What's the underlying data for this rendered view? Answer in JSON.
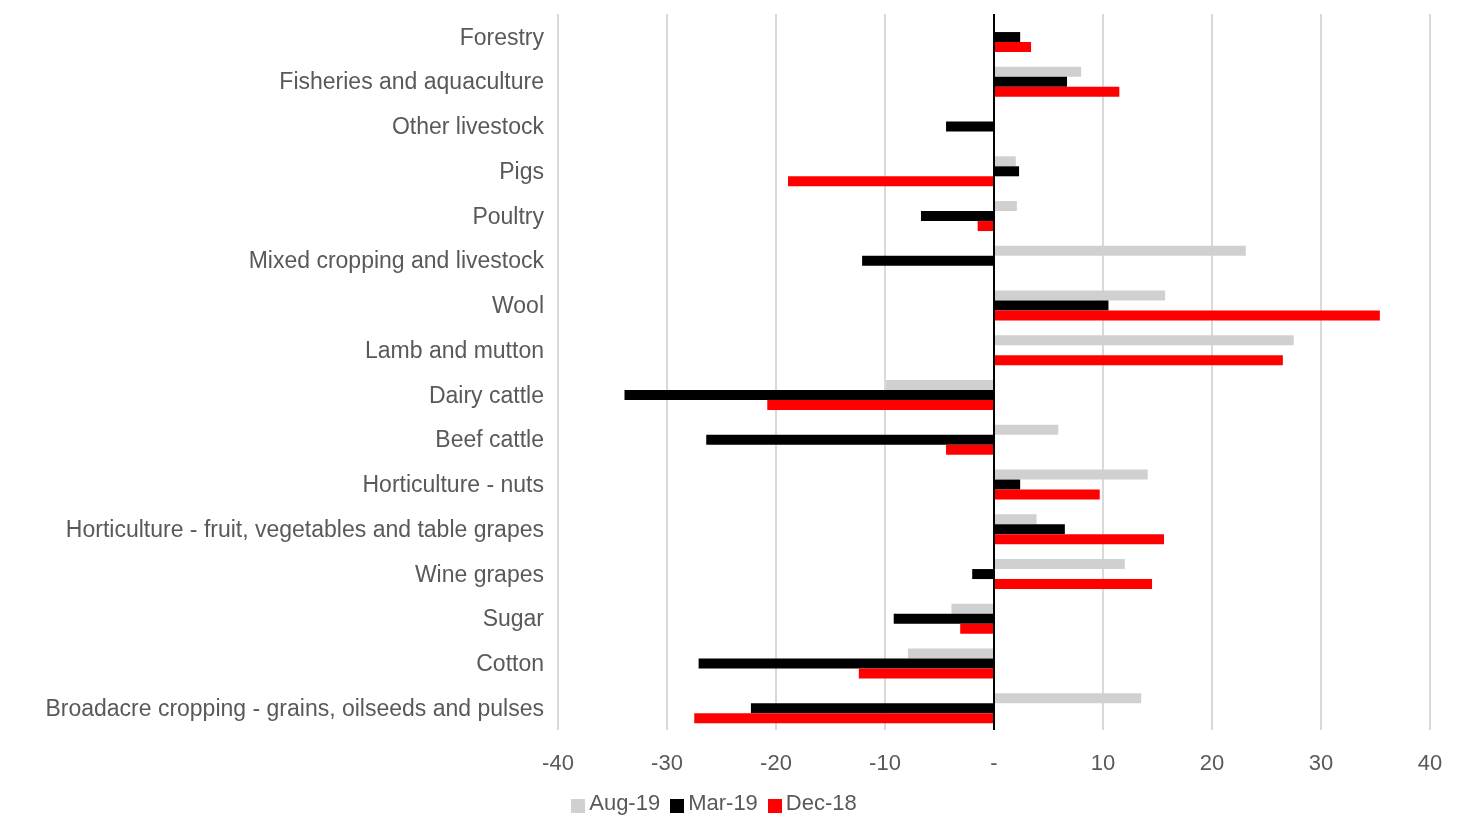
{
  "chart_data": {
    "type": "bar",
    "orientation": "horizontal",
    "categories": [
      "Forestry",
      "Fisheries and aquaculture",
      "Other livestock",
      "Pigs",
      "Poultry",
      "Mixed cropping and livestock",
      "Wool",
      "Lamb and mutton",
      "Dairy cattle",
      "Beef cattle",
      "Horticulture - nuts",
      "Horticulture - fruit, vegetables and table grapes",
      "Wine grapes",
      "Sugar",
      "Cotton",
      "Broadacre cropping - grains, oilseeds and pulses"
    ],
    "series": [
      {
        "name": "Aug-19",
        "color": "#d0d0d0",
        "values": [
          null,
          8.0,
          null,
          2.0,
          2.1,
          23.1,
          15.7,
          27.5,
          -9.9,
          5.9,
          14.1,
          3.9,
          12.0,
          -3.9,
          -7.9,
          13.5
        ]
      },
      {
        "name": "Mar-19",
        "color": "#000000",
        "values": [
          2.4,
          6.7,
          -4.4,
          2.3,
          -6.7,
          -12.1,
          10.5,
          null,
          -33.9,
          -26.4,
          2.4,
          6.5,
          -2.0,
          -9.2,
          -27.1,
          -22.3
        ]
      },
      {
        "name": "Dec-18",
        "color": "#ff0000",
        "values": [
          3.4,
          11.5,
          null,
          -18.9,
          -1.5,
          null,
          35.4,
          26.5,
          -20.8,
          -4.4,
          9.7,
          15.6,
          14.5,
          -3.1,
          -12.4,
          -27.5
        ]
      }
    ],
    "xlim": [
      -40,
      40
    ],
    "xticks": [
      -40,
      -30,
      -20,
      -10,
      {
        "value": 0,
        "label": "-"
      },
      10,
      20,
      30,
      40
    ],
    "grid": "x",
    "legend": "bottom"
  }
}
